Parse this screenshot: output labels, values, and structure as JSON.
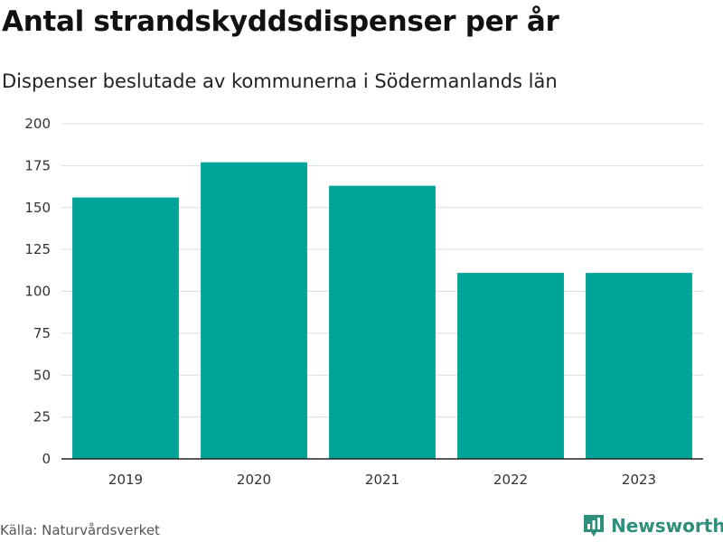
{
  "colors": {
    "bar": "#00a398",
    "grid": "#dddddd",
    "axis": "#222222",
    "brand": "#2f8f7a"
  },
  "header": {
    "title": "Antal strandskyddsdispenser per år",
    "subtitle": "Dispenser beslutade av kommunerna i Södermanlands län"
  },
  "footer": {
    "source": "Källa: Naturvårdsverket",
    "brand_name": "Newsworthy",
    "brand_icon": "bar-chart-pin-icon"
  },
  "chart_data": {
    "type": "bar",
    "title": "Antal strandskyddsdispenser per år",
    "subtitle": "Dispenser beslutade av kommunerna i Södermanlands län",
    "categories": [
      "2019",
      "2020",
      "2021",
      "2022",
      "2023"
    ],
    "values": [
      156,
      177,
      163,
      111,
      111
    ],
    "xlabel": "",
    "ylabel": "",
    "ylim": [
      0,
      200
    ],
    "yticks": [
      0,
      25,
      50,
      75,
      100,
      125,
      150,
      175,
      200
    ],
    "grid": true,
    "legend": "none"
  }
}
